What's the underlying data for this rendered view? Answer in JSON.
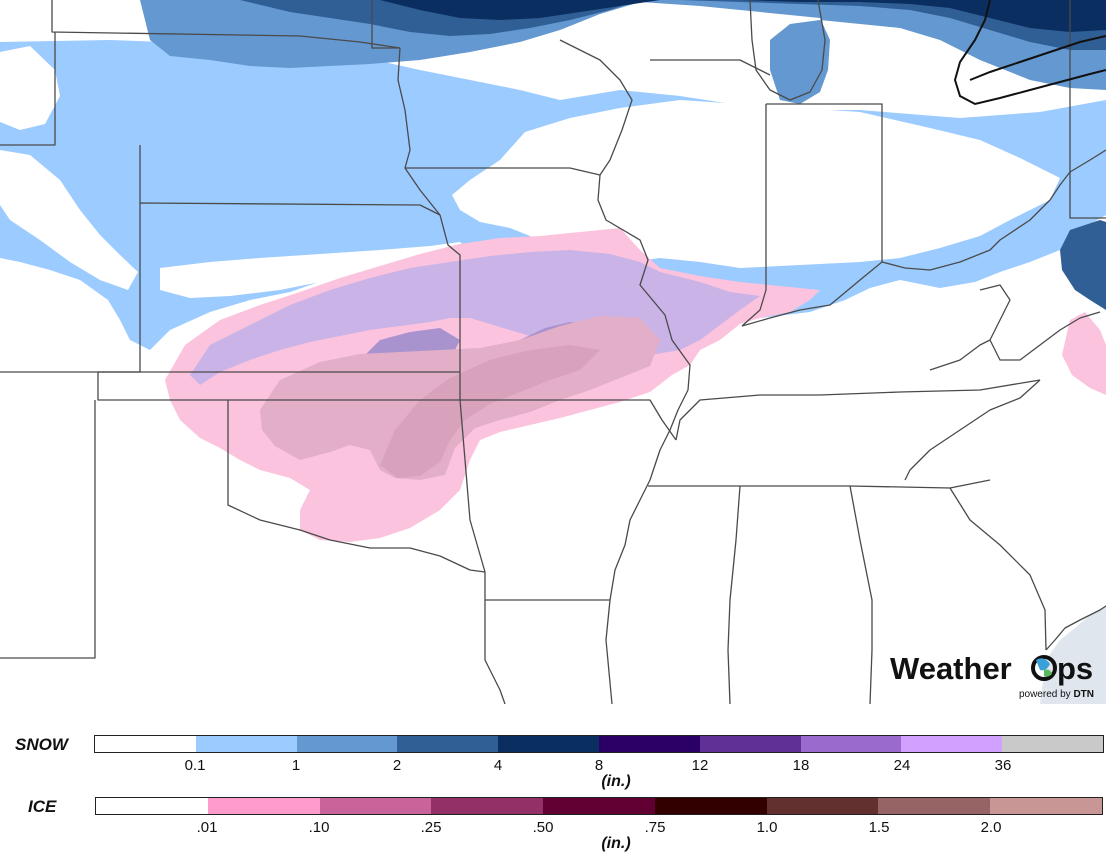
{
  "brand": {
    "name": "WeatherOps",
    "name_prefix": "Weather",
    "name_suffix": "ps",
    "tagline_prefix": "powered by ",
    "tagline_brand": "DTN",
    "icon": "globe-o-icon"
  },
  "colors": {
    "ocean": "#dfe6ee",
    "land": "#ffffff",
    "border": "#4a4a4a",
    "front": "#111111"
  },
  "legend": {
    "snow": {
      "label": "SNOW",
      "unit": "(in.)",
      "colors": [
        "#ffffff",
        "#9ccbff",
        "#6498d0",
        "#305f96",
        "#0a2e60",
        "#2a0066",
        "#613096",
        "#9a6acc",
        "#d2a1ff",
        "#c9c9c9"
      ],
      "ticks": [
        "0.1",
        "1",
        "2",
        "4",
        "8",
        "12",
        "18",
        "24",
        "36"
      ]
    },
    "ice": {
      "label": "ICE",
      "unit": "(in.)",
      "colors": [
        "#ffffff",
        "#ff9ccd",
        "#c9639a",
        "#943068",
        "#630033",
        "#330000",
        "#633030",
        "#966464",
        "#c99696"
      ],
      "ticks": [
        ".01",
        ".10",
        ".25",
        ".50",
        ".75",
        "1.0",
        "1.5",
        "2.0"
      ]
    }
  }
}
